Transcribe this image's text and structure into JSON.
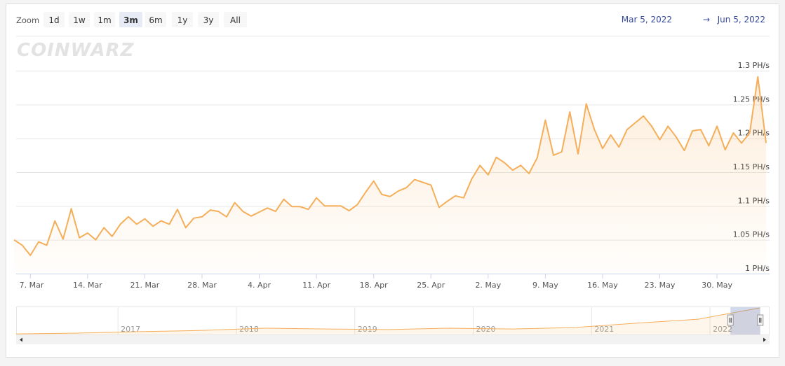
{
  "watermark": "COINWARZ",
  "zoom": {
    "label": "Zoom",
    "buttons": [
      "1d",
      "1w",
      "1m",
      "3m",
      "6m",
      "1y",
      "3y",
      "All"
    ],
    "selected": 3
  },
  "range": {
    "from": "Mar 5, 2022",
    "separator": "→",
    "to": "Jun 5, 2022"
  },
  "chart_data": {
    "type": "line",
    "x": [
      "2022-03-05",
      "2022-03-06",
      "2022-03-07",
      "2022-03-08",
      "2022-03-09",
      "2022-03-10",
      "2022-03-11",
      "2022-03-12",
      "2022-03-13",
      "2022-03-14",
      "2022-03-15",
      "2022-03-16",
      "2022-03-17",
      "2022-03-18",
      "2022-03-19",
      "2022-03-20",
      "2022-03-21",
      "2022-03-22",
      "2022-03-23",
      "2022-03-24",
      "2022-03-25",
      "2022-03-26",
      "2022-03-27",
      "2022-03-28",
      "2022-03-29",
      "2022-03-30",
      "2022-03-31",
      "2022-04-01",
      "2022-04-02",
      "2022-04-03",
      "2022-04-04",
      "2022-04-05",
      "2022-04-06",
      "2022-04-07",
      "2022-04-08",
      "2022-04-09",
      "2022-04-10",
      "2022-04-11",
      "2022-04-12",
      "2022-04-13",
      "2022-04-14",
      "2022-04-15",
      "2022-04-16",
      "2022-04-17",
      "2022-04-18",
      "2022-04-19",
      "2022-04-20",
      "2022-04-21",
      "2022-04-22",
      "2022-04-23",
      "2022-04-24",
      "2022-04-25",
      "2022-04-26",
      "2022-04-27",
      "2022-04-28",
      "2022-04-29",
      "2022-04-30",
      "2022-05-01",
      "2022-05-02",
      "2022-05-03",
      "2022-05-04",
      "2022-05-05",
      "2022-05-06",
      "2022-05-07",
      "2022-05-08",
      "2022-05-09",
      "2022-05-10",
      "2022-05-11",
      "2022-05-12",
      "2022-05-13",
      "2022-05-14",
      "2022-05-15",
      "2022-05-16",
      "2022-05-17",
      "2022-05-18",
      "2022-05-19",
      "2022-05-20",
      "2022-05-21",
      "2022-05-22",
      "2022-05-23",
      "2022-05-24",
      "2022-05-25",
      "2022-05-26",
      "2022-05-27",
      "2022-05-28",
      "2022-05-29",
      "2022-05-30",
      "2022-05-31",
      "2022-06-01",
      "2022-06-02",
      "2022-06-03",
      "2022-06-04",
      "2022-06-05"
    ],
    "series": [
      {
        "color": "#f5ae5a",
        "values": [
          1.05,
          1.042,
          1.027,
          1.047,
          1.042,
          1.078,
          1.051,
          1.096,
          1.053,
          1.06,
          1.05,
          1.068,
          1.055,
          1.073,
          1.084,
          1.073,
          1.081,
          1.07,
          1.078,
          1.073,
          1.095,
          1.068,
          1.082,
          1.084,
          1.094,
          1.092,
          1.084,
          1.105,
          1.092,
          1.085,
          1.091,
          1.097,
          1.092,
          1.11,
          1.099,
          1.099,
          1.095,
          1.112,
          1.1,
          1.1,
          1.1,
          1.093,
          1.102,
          1.12,
          1.137,
          1.117,
          1.114,
          1.122,
          1.127,
          1.139,
          1.135,
          1.131,
          1.098,
          1.107,
          1.115,
          1.112,
          1.14,
          1.16,
          1.146,
          1.172,
          1.164,
          1.153,
          1.16,
          1.148,
          1.171,
          1.227,
          1.175,
          1.18,
          1.239,
          1.177,
          1.251,
          1.213,
          1.185,
          1.205,
          1.187,
          1.213,
          1.223,
          1.233,
          1.218,
          1.198,
          1.218,
          1.202,
          1.182,
          1.211,
          1.213,
          1.189,
          1.218,
          1.183,
          1.208,
          1.193,
          1.208,
          1.291,
          1.193
        ]
      }
    ],
    "xlim": [
      "2022-03-05",
      "2022-06-05"
    ],
    "xticks": [
      {
        "value": "2022-03-07",
        "label": "7. Mar"
      },
      {
        "value": "2022-03-14",
        "label": "14. Mar"
      },
      {
        "value": "2022-03-21",
        "label": "21. Mar"
      },
      {
        "value": "2022-03-28",
        "label": "28. Mar"
      },
      {
        "value": "2022-04-04",
        "label": "4. Apr"
      },
      {
        "value": "2022-04-11",
        "label": "11. Apr"
      },
      {
        "value": "2022-04-18",
        "label": "18. Apr"
      },
      {
        "value": "2022-04-25",
        "label": "25. Apr"
      },
      {
        "value": "2022-05-02",
        "label": "2. May"
      },
      {
        "value": "2022-05-09",
        "label": "9. May"
      },
      {
        "value": "2022-05-16",
        "label": "16. May"
      },
      {
        "value": "2022-05-23",
        "label": "23. May"
      },
      {
        "value": "2022-05-30",
        "label": "30. May"
      }
    ],
    "ylim": [
      1,
      1.3
    ],
    "yticks": [
      {
        "value": 1,
        "label": "1 PH/s"
      },
      {
        "value": 1.05,
        "label": "1.05 PH/s"
      },
      {
        "value": 1.1,
        "label": "1.1 PH/s"
      },
      {
        "value": 1.15,
        "label": "1.15 PH/s"
      },
      {
        "value": 1.2,
        "label": "1.2 PH/s"
      },
      {
        "value": 1.25,
        "label": "1.25 PH/s"
      },
      {
        "value": 1.3,
        "label": "1.3 PH/s"
      }
    ],
    "grid": true,
    "navigator": {
      "x": [
        2016.14,
        2016.66,
        2017.19,
        2017.71,
        2018.23,
        2018.76,
        2019.28,
        2019.8,
        2020.33,
        2020.85,
        2021.37,
        2021.9,
        2022.42
      ],
      "values": [
        0.03,
        0.07,
        0.14,
        0.2,
        0.31,
        0.27,
        0.24,
        0.31,
        0.27,
        0.34,
        0.55,
        0.75,
        1.3
      ],
      "xlim": [
        2016.14,
        2022.42
      ],
      "ylim": [
        0,
        1.3
      ],
      "xticks": [
        2017,
        2018,
        2019,
        2020,
        2021,
        2022
      ]
    }
  }
}
